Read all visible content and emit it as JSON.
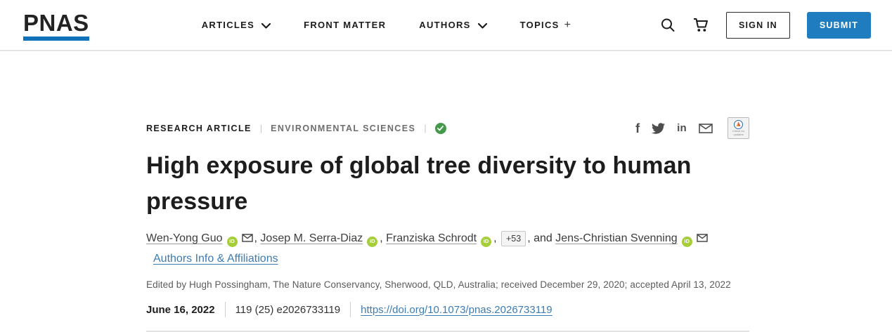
{
  "nav": {
    "logo_text": "PNAS",
    "items": [
      {
        "label": "ARTICLES",
        "chevron": true
      },
      {
        "label": "FRONT MATTER",
        "chevron": false
      },
      {
        "label": "AUTHORS",
        "chevron": true
      },
      {
        "label": "TOPICS",
        "suffix": "+"
      }
    ],
    "sign_in_label": "SIGN IN",
    "submit_label": "SUBMIT"
  },
  "article": {
    "eyebrow": {
      "type": "RESEARCH ARTICLE",
      "separator": "|",
      "subject": "ENVIRONMENTAL SCIENCES"
    },
    "title": "High exposure of global tree diversity to human pressure",
    "author_line": [
      {
        "type": "author",
        "name": "Wen-Yong Guo",
        "orcid": true,
        "email": true
      },
      {
        "type": "text",
        "text": ", "
      },
      {
        "type": "author",
        "name": "Josep M. Serra-Diaz",
        "orcid": true,
        "email": false
      },
      {
        "type": "text",
        "text": ", "
      },
      {
        "type": "author",
        "name": "Franziska Schrodt",
        "orcid": true,
        "email": false
      },
      {
        "type": "text",
        "text": ", "
      },
      {
        "type": "badge",
        "text": "+53"
      },
      {
        "type": "text",
        "text": ", and "
      },
      {
        "type": "author",
        "name": "Jens-Christian Svenning",
        "orcid": true,
        "email": true
      },
      {
        "type": "link",
        "text": "Authors Info & Affiliations"
      }
    ],
    "edited_by": "Edited by Hugh Possingham, The Nature Conservancy, Sherwood, QLD, Australia; received December 29, 2020; accepted April 13, 2022",
    "pub": {
      "date": "June 16, 2022",
      "citation": "119 (25) e2026733119",
      "doi": "https://doi.org/10.1073/pnas.2026733119"
    }
  },
  "share": {
    "icons": [
      "facebook-icon",
      "twitter-icon",
      "linkedin-icon",
      "email-icon"
    ],
    "crossmark_label": "Check for updates"
  },
  "colors": {
    "brand_blue": "#1172ba",
    "button_blue": "#1f7dbf",
    "link_blue": "#3c7cb4",
    "orcid_green": "#a6ce39",
    "open_access_green": "#44994a"
  }
}
